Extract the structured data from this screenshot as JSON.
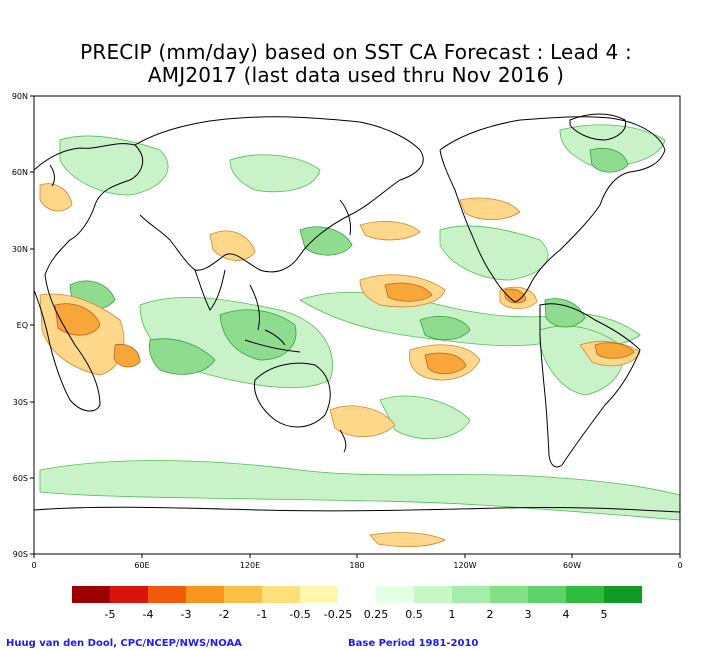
{
  "title": {
    "line1": "PRECIP (mm/day) based on SST CA Forecast : Lead 4 :",
    "line2": "AMJ2017 (last data used thru Nov 2016 )"
  },
  "axes": {
    "lat_labels": [
      "90N",
      "60N",
      "30N",
      "EQ",
      "30S",
      "60S",
      "90S"
    ],
    "lon_labels": [
      "0",
      "60E",
      "120E",
      "180",
      "120W",
      "60W",
      "0"
    ]
  },
  "legend": {
    "colors": [
      "#9e0000",
      "#d8140f",
      "#f15a0a",
      "#f7961e",
      "#fcbe46",
      "#fde07a",
      "#fff7b0",
      "#ffffff",
      "#e6fde6",
      "#c8f7c8",
      "#a6ecaa",
      "#83e087",
      "#5fd26a",
      "#2fbc3f",
      "#109a26"
    ],
    "labels": [
      "-5",
      "-4",
      "-3",
      "-2",
      "-1",
      "-0.5",
      "-0.25",
      "0.25",
      "0.5",
      "1",
      "2",
      "3",
      "4",
      "5"
    ]
  },
  "footer": {
    "credit": "Huug van den Dool, CPC/NCEP/NWS/NOAA",
    "base_period": "Base Period 1981-2010"
  },
  "colors": {
    "dry": "#f7a63a",
    "dry_light": "#fdd78a",
    "wet": "#8fdc90",
    "wet_light": "#c9f2c8",
    "coast": "#000000"
  }
}
